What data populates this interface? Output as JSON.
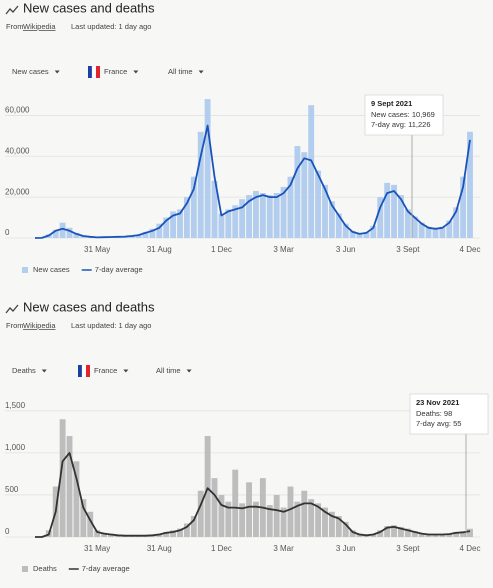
{
  "chart_data": [
    {
      "type": "bar",
      "title": "New cases and deaths",
      "source_prefix": "From",
      "source": "Wikipedia",
      "updated": "Last updated: 1 day ago",
      "controls": [
        "New cases",
        "France",
        "All time"
      ],
      "categories": [
        null,
        null,
        null,
        null,
        null,
        null,
        null,
        null,
        null,
        "31 May",
        null,
        null,
        null,
        null,
        null,
        null,
        null,
        null,
        "31 Aug",
        null,
        null,
        null,
        null,
        null,
        null,
        null,
        null,
        "1 Dec",
        null,
        null,
        null,
        null,
        null,
        null,
        null,
        null,
        "3 Mar",
        null,
        null,
        null,
        null,
        null,
        null,
        null,
        null,
        "3 Jun",
        null,
        null,
        null,
        null,
        null,
        null,
        null,
        null,
        "3 Sept",
        null,
        null,
        null,
        null,
        null,
        null,
        null,
        null,
        "4 Dec"
      ],
      "series": [
        {
          "name": "New cases",
          "type": "bar",
          "color": "#b3cdee",
          "values": [
            0,
            100,
            1800,
            4000,
            7500,
            5000,
            2500,
            1200,
            700,
            300,
            500,
            600,
            700,
            800,
            1100,
            1700,
            3000,
            4500,
            7000,
            10000,
            13000,
            14000,
            20000,
            30000,
            52000,
            68000,
            28000,
            12000,
            14000,
            16000,
            19000,
            21000,
            23000,
            22000,
            21000,
            22000,
            25000,
            30000,
            45000,
            42000,
            65000,
            33000,
            26000,
            18000,
            12000,
            7000,
            3500,
            2200,
            2800,
            6000,
            20000,
            27000,
            26000,
            21000,
            14000,
            10500,
            7500,
            5500,
            5000,
            5500,
            8500,
            15000,
            30000,
            52000
          ]
        },
        {
          "name": "7-day average",
          "type": "line",
          "color": "#1b54b8",
          "values": [
            0,
            50,
            1200,
            3500,
            4500,
            3500,
            2000,
            1000,
            600,
            300,
            400,
            500,
            600,
            700,
            1000,
            1400,
            2500,
            3500,
            5000,
            8500,
            11000,
            12000,
            17000,
            24000,
            40000,
            55000,
            30000,
            11000,
            13000,
            14000,
            15000,
            18000,
            20000,
            21000,
            20000,
            20000,
            22000,
            26000,
            34000,
            39000,
            38000,
            31000,
            24000,
            16000,
            11000,
            6000,
            3000,
            2000,
            2500,
            5000,
            15000,
            22000,
            23000,
            19000,
            13000,
            10000,
            7000,
            5000,
            4500,
            5000,
            7500,
            13000,
            25000,
            48000
          ]
        }
      ],
      "ylim": [
        0,
        70000
      ],
      "yticks": [
        0,
        {
          "value": 20000,
          "label": "20,000"
        },
        {
          "value": 40000,
          "label": "40,000"
        },
        {
          "value": 60000,
          "label": "60,000"
        }
      ],
      "grid": true,
      "tooltip": {
        "date": "9 Sept 2021",
        "lines": [
          "New cases: 10,969",
          "7-day avg: 11,226"
        ]
      }
    },
    {
      "type": "bar",
      "title": "New cases and deaths",
      "source_prefix": "From",
      "source": "Wikipedia",
      "updated": "Last updated: 1 day ago",
      "controls": [
        "Deaths",
        "France",
        "All time"
      ],
      "categories": [
        null,
        null,
        null,
        null,
        null,
        null,
        null,
        null,
        null,
        "31 May",
        null,
        null,
        null,
        null,
        null,
        null,
        null,
        null,
        "31 Aug",
        null,
        null,
        null,
        null,
        null,
        null,
        null,
        null,
        "1 Dec",
        null,
        null,
        null,
        null,
        null,
        null,
        null,
        null,
        "3 Mar",
        null,
        null,
        null,
        null,
        null,
        null,
        null,
        null,
        "3 Jun",
        null,
        null,
        null,
        null,
        null,
        null,
        null,
        null,
        "3 Sept",
        null,
        null,
        null,
        null,
        null,
        null,
        null,
        null,
        "4 Dec"
      ],
      "series": [
        {
          "name": "Deaths",
          "type": "bar",
          "color": "#bdbdbd",
          "values": [
            0,
            5,
            80,
            600,
            1400,
            1200,
            900,
            450,
            300,
            80,
            50,
            40,
            25,
            20,
            20,
            20,
            20,
            25,
            40,
            60,
            80,
            100,
            160,
            250,
            550,
            1200,
            700,
            500,
            420,
            800,
            400,
            650,
            420,
            700,
            380,
            500,
            350,
            600,
            420,
            550,
            450,
            400,
            350,
            300,
            250,
            180,
            80,
            40,
            25,
            35,
            80,
            130,
            140,
            120,
            100,
            70,
            45,
            35,
            35,
            35,
            40,
            60,
            70,
            98
          ]
        },
        {
          "name": "7-day average",
          "type": "line",
          "color": "#333333",
          "values": [
            0,
            0,
            30,
            300,
            900,
            1000,
            700,
            350,
            200,
            60,
            40,
            30,
            20,
            15,
            15,
            15,
            15,
            20,
            30,
            50,
            60,
            80,
            120,
            200,
            380,
            580,
            500,
            380,
            350,
            350,
            340,
            360,
            360,
            350,
            330,
            320,
            300,
            330,
            370,
            400,
            400,
            360,
            300,
            250,
            220,
            150,
            60,
            30,
            20,
            30,
            60,
            110,
            120,
            100,
            80,
            60,
            40,
            30,
            30,
            30,
            35,
            50,
            55,
            70
          ]
        }
      ],
      "ylim": [
        0,
        1700
      ],
      "yticks": [
        0,
        500,
        {
          "value": 1000,
          "label": "1,000"
        },
        {
          "value": 1500,
          "label": "1,500"
        }
      ],
      "grid": true,
      "tooltip": {
        "date": "23 Nov 2021",
        "lines": [
          "Deaths: 98",
          "7-day avg: 55"
        ]
      }
    }
  ]
}
